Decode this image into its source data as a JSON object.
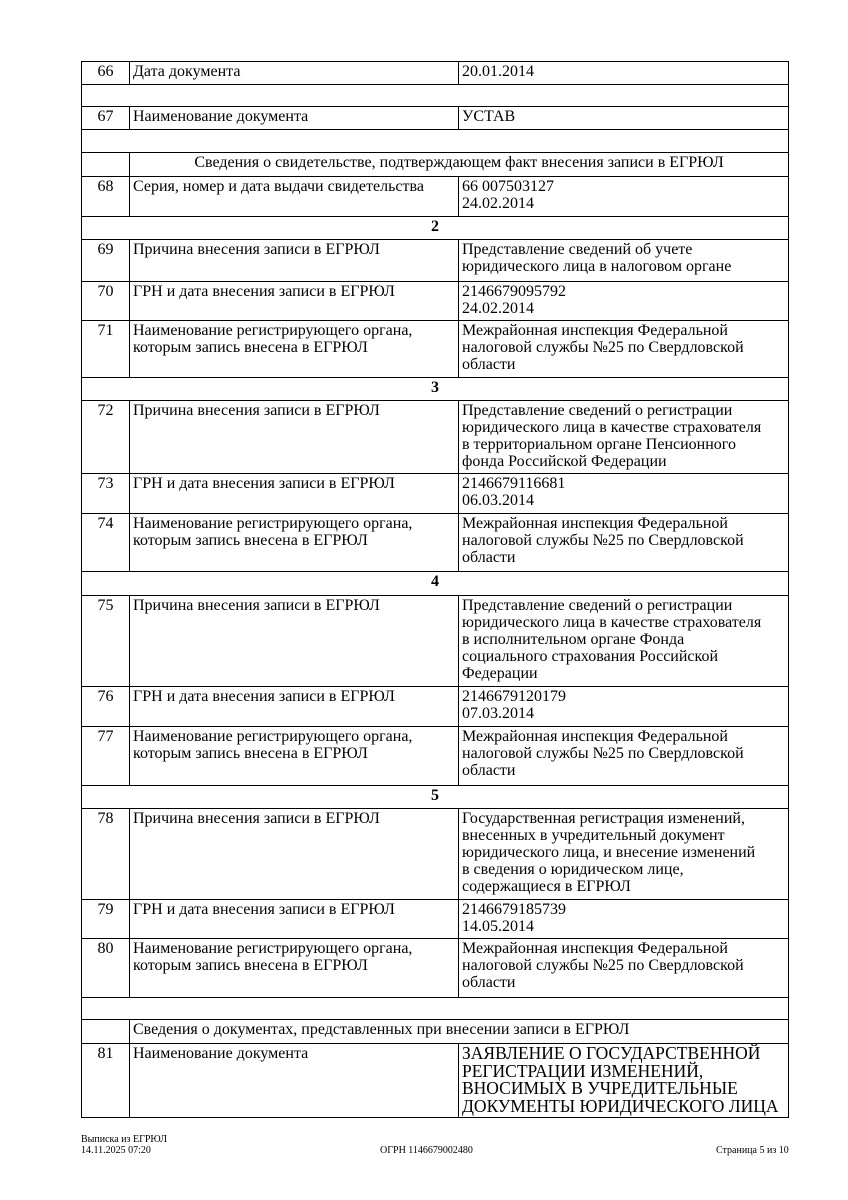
{
  "rows": [
    {
      "type": "item",
      "num": "66",
      "label": "Дата документа",
      "value": "20.01.2014"
    },
    {
      "type": "empty"
    },
    {
      "type": "item",
      "num": "67",
      "label": "Наименование документа",
      "value": "УСТАВ"
    },
    {
      "type": "empty"
    },
    {
      "type": "subheader",
      "text": "Сведения о свидетельстве, подтверждающем факт внесения записи в ЕГРЮЛ",
      "align": "center"
    },
    {
      "type": "item",
      "num": "68",
      "label": "Серия, номер и дата выдачи свидетельства",
      "value": "66 007503127\n24.02.2014"
    },
    {
      "type": "section",
      "text": "2"
    },
    {
      "type": "item",
      "num": "69",
      "label": "Причина внесения записи в ЕГРЮЛ",
      "value": "Представление сведений об учете\nюридического лица в налоговом органе"
    },
    {
      "type": "item",
      "num": "70",
      "label": "ГРН и дата внесения записи в ЕГРЮЛ",
      "value": "2146679095792\n24.02.2014"
    },
    {
      "type": "item",
      "num": "71",
      "label": "Наименование регистрирующего органа,\nкоторым запись внесена в ЕГРЮЛ",
      "value": "Межрайонная инспекция Федеральной\nналоговой службы №25 по Свердловской\nобласти"
    },
    {
      "type": "section",
      "text": "3"
    },
    {
      "type": "item",
      "num": "72",
      "label": "Причина внесения записи в ЕГРЮЛ",
      "value": "Представление сведений о регистрации\nюридического лица в качестве страхователя\nв территориальном органе Пенсионного\nфонда Российской Федерации"
    },
    {
      "type": "item",
      "num": "73",
      "label": "ГРН и дата внесения записи в ЕГРЮЛ",
      "value": "2146679116681\n06.03.2014"
    },
    {
      "type": "item",
      "num": "74",
      "label": "Наименование регистрирующего органа,\nкоторым запись внесена в ЕГРЮЛ",
      "value": "Межрайонная инспекция Федеральной\nналоговой службы №25 по Свердловской\nобласти"
    },
    {
      "type": "section",
      "text": "4"
    },
    {
      "type": "item",
      "num": "75",
      "label": "Причина внесения записи в ЕГРЮЛ",
      "value": "Представление сведений о регистрации\nюридического лица в качестве страхователя\nв исполнительном органе Фонда\nсоциального страхования Российской\nФедерации"
    },
    {
      "type": "item",
      "num": "76",
      "label": "ГРН и дата внесения записи в ЕГРЮЛ",
      "value": "2146679120179\n07.03.2014"
    },
    {
      "type": "item",
      "num": "77",
      "label": "Наименование регистрирующего органа,\nкоторым запись внесена в ЕГРЮЛ",
      "value": "Межрайонная инспекция Федеральной\nналоговой службы №25 по Свердловской\nобласти"
    },
    {
      "type": "section",
      "text": "5"
    },
    {
      "type": "item",
      "num": "78",
      "label": "Причина внесения записи в ЕГРЮЛ",
      "value": "Государственная регистрация изменений,\nвнесенных в учредительный документ\nюридического лица, и внесение изменений\nв сведения о юридическом лице,\nсодержащиеся в ЕГРЮЛ"
    },
    {
      "type": "item",
      "num": "79",
      "label": "ГРН и дата внесения записи в ЕГРЮЛ",
      "value": "2146679185739\n14.05.2014"
    },
    {
      "type": "item",
      "num": "80",
      "label": "Наименование регистрирующего органа,\nкоторым запись внесена в ЕГРЮЛ",
      "value": "Межрайонная инспекция Федеральной\nналоговой службы №25 по Свердловской\nобласти"
    },
    {
      "type": "empty"
    },
    {
      "type": "subheader",
      "text": "Сведения о документах, представленных при внесении записи в ЕГРЮЛ",
      "align": "left"
    },
    {
      "type": "item",
      "num": "81",
      "label": "Наименование документа",
      "value": "ЗАЯВЛЕНИЕ О ГОСУДАРСТВЕННОЙ\nРЕГИСТРАЦИИ ИЗМЕНЕНИЙ,\nВНОСИМЫХ В УЧРЕДИТЕЛЬНЫЕ\nДОКУМЕНТЫ  ЮРИДИЧЕСКОГО ЛИЦА",
      "value_size": "large"
    }
  ],
  "footer": {
    "doc_title": "Выписка из ЕГРЮЛ",
    "datetime": "14.11.2025 07:20",
    "ogrn": "ОГРН 1146679002480",
    "page": "Страница 5 из 10"
  }
}
